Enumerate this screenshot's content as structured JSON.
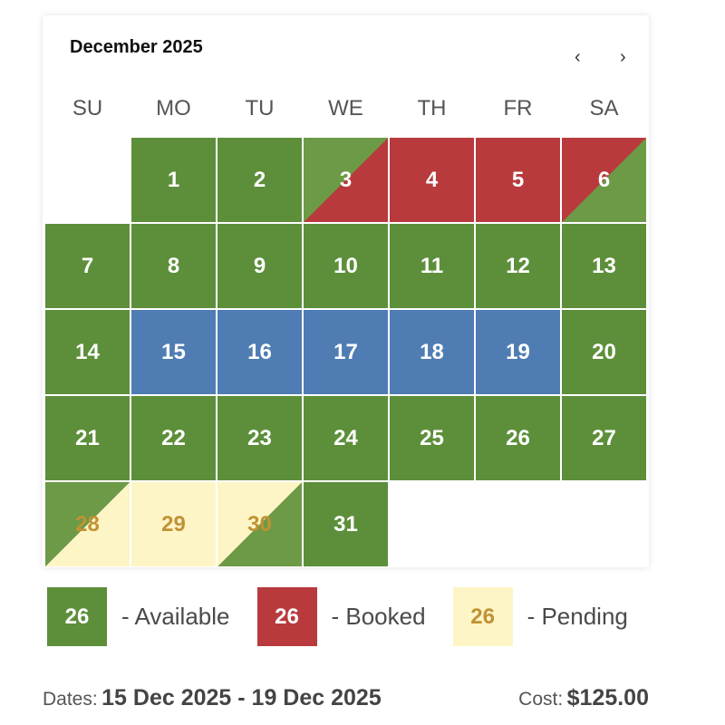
{
  "header": {
    "title": "December 2025",
    "prev_icon": "‹",
    "next_icon": "›"
  },
  "weekdays": [
    "SU",
    "MO",
    "TU",
    "WE",
    "TH",
    "FR",
    "SA"
  ],
  "colors": {
    "available": "#5d8f3a",
    "available_light": "#6c9a47",
    "booked": "#b83a3d",
    "selected": "#4f7db3",
    "pending": "#fef5c6",
    "pending_text": "#c09234"
  },
  "first_weekday_offset": 1,
  "days": [
    {
      "label": "1",
      "status": "available"
    },
    {
      "label": "2",
      "status": "available"
    },
    {
      "label": "3",
      "status": "split",
      "top": "available_light",
      "bottom": "booked"
    },
    {
      "label": "4",
      "status": "booked"
    },
    {
      "label": "5",
      "status": "booked"
    },
    {
      "label": "6",
      "status": "split",
      "top": "booked",
      "bottom": "available_light"
    },
    {
      "label": "7",
      "status": "available"
    },
    {
      "label": "8",
      "status": "available"
    },
    {
      "label": "9",
      "status": "available"
    },
    {
      "label": "10",
      "status": "available"
    },
    {
      "label": "11",
      "status": "available"
    },
    {
      "label": "12",
      "status": "available"
    },
    {
      "label": "13",
      "status": "available"
    },
    {
      "label": "14",
      "status": "available"
    },
    {
      "label": "15",
      "status": "selected"
    },
    {
      "label": "16",
      "status": "selected"
    },
    {
      "label": "17",
      "status": "selected"
    },
    {
      "label": "18",
      "status": "selected"
    },
    {
      "label": "19",
      "status": "selected"
    },
    {
      "label": "20",
      "status": "available"
    },
    {
      "label": "21",
      "status": "available"
    },
    {
      "label": "22",
      "status": "available"
    },
    {
      "label": "23",
      "status": "available"
    },
    {
      "label": "24",
      "status": "available"
    },
    {
      "label": "25",
      "status": "available"
    },
    {
      "label": "26",
      "status": "available"
    },
    {
      "label": "27",
      "status": "available"
    },
    {
      "label": "28",
      "status": "split",
      "top": "available_light",
      "bottom": "pending"
    },
    {
      "label": "29",
      "status": "pending"
    },
    {
      "label": "30",
      "status": "split",
      "top": "pending",
      "bottom": "available_light"
    },
    {
      "label": "31",
      "status": "available"
    }
  ],
  "legend": [
    {
      "sample": "26",
      "label": "- Available",
      "status": "available"
    },
    {
      "sample": "26",
      "label": "- Booked",
      "status": "booked"
    },
    {
      "sample": "26",
      "label": "- Pending",
      "status": "pending"
    }
  ],
  "footer": {
    "dates_label": "Dates:",
    "dates_value": "15 Dec 2025 - 19 Dec 2025",
    "cost_label": "Cost:",
    "cost_value": "$125.00"
  }
}
